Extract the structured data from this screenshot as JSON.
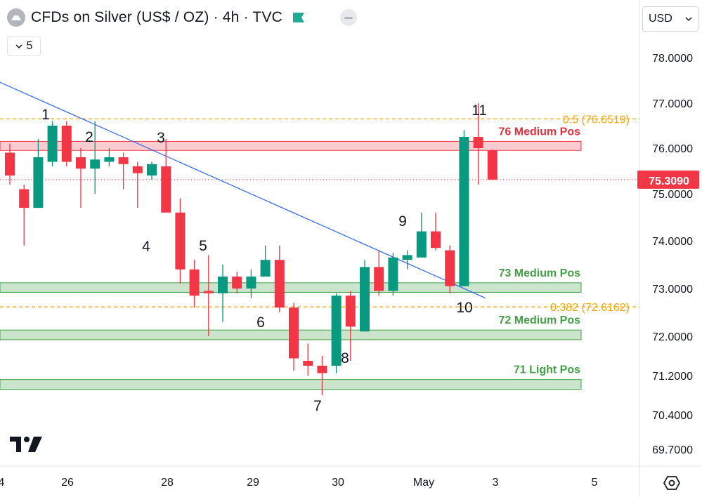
{
  "header": {
    "title": "CFDs on Silver (US$ / OZ) · 4h · TVC",
    "collapse_count": "5",
    "currency": "USD"
  },
  "colors": {
    "up": "#089981",
    "down": "#f23645",
    "trendline": "#2962ff",
    "fib": "#f7a600",
    "resistance_text": "#e0313f",
    "support_text": "#43a047",
    "current_price_bg": "#f23645"
  },
  "chart_data": {
    "type": "candlestick",
    "ylim": [
      69.4,
      78.5
    ],
    "y_ticks": [
      "78.0000",
      "77.0000",
      "76.0000",
      "75.0000",
      "74.0000",
      "73.0000",
      "72.0000",
      "71.2000",
      "70.4000",
      "69.7000"
    ],
    "x_ticks": [
      "4",
      "26",
      "28",
      "29",
      "30",
      "May",
      "3",
      "5"
    ],
    "candles": [
      {
        "o": 75.9,
        "h": 76.1,
        "l": 75.2,
        "c": 75.4
      },
      {
        "o": 75.1,
        "h": 75.2,
        "l": 73.9,
        "c": 74.7
      },
      {
        "o": 74.7,
        "h": 76.2,
        "l": 74.7,
        "c": 75.8
      },
      {
        "o": 75.7,
        "h": 76.6,
        "l": 75.6,
        "c": 76.5
      },
      {
        "o": 76.5,
        "h": 76.6,
        "l": 75.6,
        "c": 75.7
      },
      {
        "o": 75.8,
        "h": 76.0,
        "l": 74.7,
        "c": 75.55
      },
      {
        "o": 75.55,
        "h": 76.6,
        "l": 75.0,
        "c": 75.75
      },
      {
        "o": 75.7,
        "h": 76.0,
        "l": 75.6,
        "c": 75.8
      },
      {
        "o": 75.8,
        "h": 75.9,
        "l": 75.1,
        "c": 75.65
      },
      {
        "o": 75.6,
        "h": 75.7,
        "l": 74.7,
        "c": 75.45
      },
      {
        "o": 75.4,
        "h": 75.7,
        "l": 75.3,
        "c": 75.65
      },
      {
        "o": 75.6,
        "h": 76.2,
        "l": 74.6,
        "c": 74.6
      },
      {
        "o": 74.6,
        "h": 74.9,
        "l": 73.1,
        "c": 73.4
      },
      {
        "o": 73.4,
        "h": 73.6,
        "l": 72.6,
        "c": 72.85
      },
      {
        "o": 72.95,
        "h": 73.7,
        "l": 72.0,
        "c": 72.9
      },
      {
        "o": 72.9,
        "h": 73.5,
        "l": 72.3,
        "c": 73.25
      },
      {
        "o": 73.25,
        "h": 73.35,
        "l": 72.9,
        "c": 73.0
      },
      {
        "o": 73.0,
        "h": 73.4,
        "l": 72.8,
        "c": 73.25
      },
      {
        "o": 73.25,
        "h": 73.9,
        "l": 73.25,
        "c": 73.6
      },
      {
        "o": 73.6,
        "h": 73.9,
        "l": 72.5,
        "c": 72.6
      },
      {
        "o": 72.6,
        "h": 72.7,
        "l": 71.3,
        "c": 71.55
      },
      {
        "o": 71.5,
        "h": 71.85,
        "l": 71.2,
        "c": 71.4
      },
      {
        "o": 71.4,
        "h": 71.6,
        "l": 70.8,
        "c": 71.25
      },
      {
        "o": 71.4,
        "h": 72.9,
        "l": 71.25,
        "c": 72.85
      },
      {
        "o": 72.85,
        "h": 72.95,
        "l": 71.5,
        "c": 72.2
      },
      {
        "o": 72.1,
        "h": 73.6,
        "l": 72.1,
        "c": 73.45
      },
      {
        "o": 73.45,
        "h": 73.8,
        "l": 72.85,
        "c": 72.95
      },
      {
        "o": 72.95,
        "h": 73.75,
        "l": 72.85,
        "c": 73.65
      },
      {
        "o": 73.6,
        "h": 73.8,
        "l": 73.4,
        "c": 73.7
      },
      {
        "o": 73.65,
        "h": 74.6,
        "l": 73.65,
        "c": 74.2
      },
      {
        "o": 74.2,
        "h": 74.6,
        "l": 73.8,
        "c": 73.85
      },
      {
        "o": 73.8,
        "h": 73.9,
        "l": 72.9,
        "c": 73.05
      },
      {
        "o": 73.05,
        "h": 76.4,
        "l": 73.05,
        "c": 76.25
      },
      {
        "o": 76.25,
        "h": 77.0,
        "l": 75.2,
        "c": 76.0
      },
      {
        "o": 75.95,
        "h": 75.97,
        "l": 75.3,
        "c": 75.31
      }
    ],
    "wave_labels": [
      "1",
      "2",
      "3",
      "4",
      "5",
      "6",
      "7",
      "8",
      "9",
      "10",
      "11"
    ],
    "zones": [
      {
        "label": "76 Medium Pos",
        "from": 75.95,
        "to": 76.15,
        "type": "resistance"
      },
      {
        "label": "73 Medium Pos",
        "from": 72.92,
        "to": 73.12,
        "type": "support"
      },
      {
        "label": "72 Medium Pos",
        "from": 71.93,
        "to": 72.13,
        "type": "support"
      },
      {
        "label": "71 Light Pos",
        "from": 70.92,
        "to": 71.12,
        "type": "support"
      }
    ],
    "fib_levels": [
      {
        "label": "0.5 (76.6519)",
        "value": 76.6519
      },
      {
        "label": "0.382 (72.6162)",
        "value": 72.6162
      }
    ],
    "current_price": {
      "label": "75.3090",
      "value": 75.309
    },
    "trendline": {
      "from": [
        77.5,
        -1
      ],
      "to": [
        72.8,
        33.5
      ]
    }
  }
}
